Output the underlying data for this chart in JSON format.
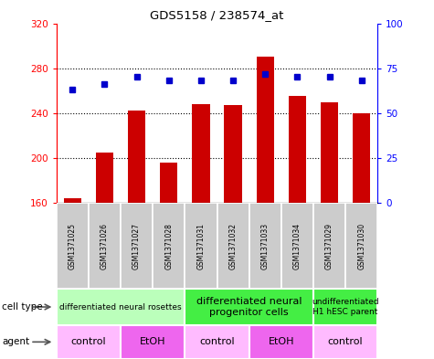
{
  "title": "GDS5158 / 238574_at",
  "samples": [
    "GSM1371025",
    "GSM1371026",
    "GSM1371027",
    "GSM1371028",
    "GSM1371031",
    "GSM1371032",
    "GSM1371033",
    "GSM1371034",
    "GSM1371029",
    "GSM1371030"
  ],
  "counts": [
    164,
    205,
    242,
    196,
    248,
    247,
    290,
    255,
    250,
    240
  ],
  "percentiles": [
    63,
    66,
    70,
    68,
    68,
    68,
    72,
    70,
    70,
    68
  ],
  "ylim_left": [
    160,
    320
  ],
  "ylim_right": [
    0,
    100
  ],
  "yticks_left": [
    160,
    200,
    240,
    280,
    320
  ],
  "yticks_right": [
    0,
    25,
    50,
    75,
    100
  ],
  "bar_color": "#cc0000",
  "dot_color": "#0000cc",
  "cell_types": [
    {
      "label": "differentiated neural rosettes",
      "start": 0,
      "end": 4,
      "color": "#bbffbb",
      "fontsize": 6.5
    },
    {
      "label": "differentiated neural\nprogenitor cells",
      "start": 4,
      "end": 8,
      "color": "#44ee44",
      "fontsize": 8
    },
    {
      "label": "undifferentiated\nH1 hESC parent",
      "start": 8,
      "end": 10,
      "color": "#44ee44",
      "fontsize": 6.5
    }
  ],
  "agents": [
    {
      "label": "control",
      "start": 0,
      "end": 2,
      "color": "#ffbbff"
    },
    {
      "label": "EtOH",
      "start": 2,
      "end": 4,
      "color": "#ee66ee"
    },
    {
      "label": "control",
      "start": 4,
      "end": 6,
      "color": "#ffbbff"
    },
    {
      "label": "EtOH",
      "start": 6,
      "end": 8,
      "color": "#ee66ee"
    },
    {
      "label": "control",
      "start": 8,
      "end": 10,
      "color": "#ffbbff"
    }
  ],
  "sample_bg_color": "#cccccc",
  "gridline_y": [
    200,
    240,
    280
  ],
  "bar_baseline": 160
}
